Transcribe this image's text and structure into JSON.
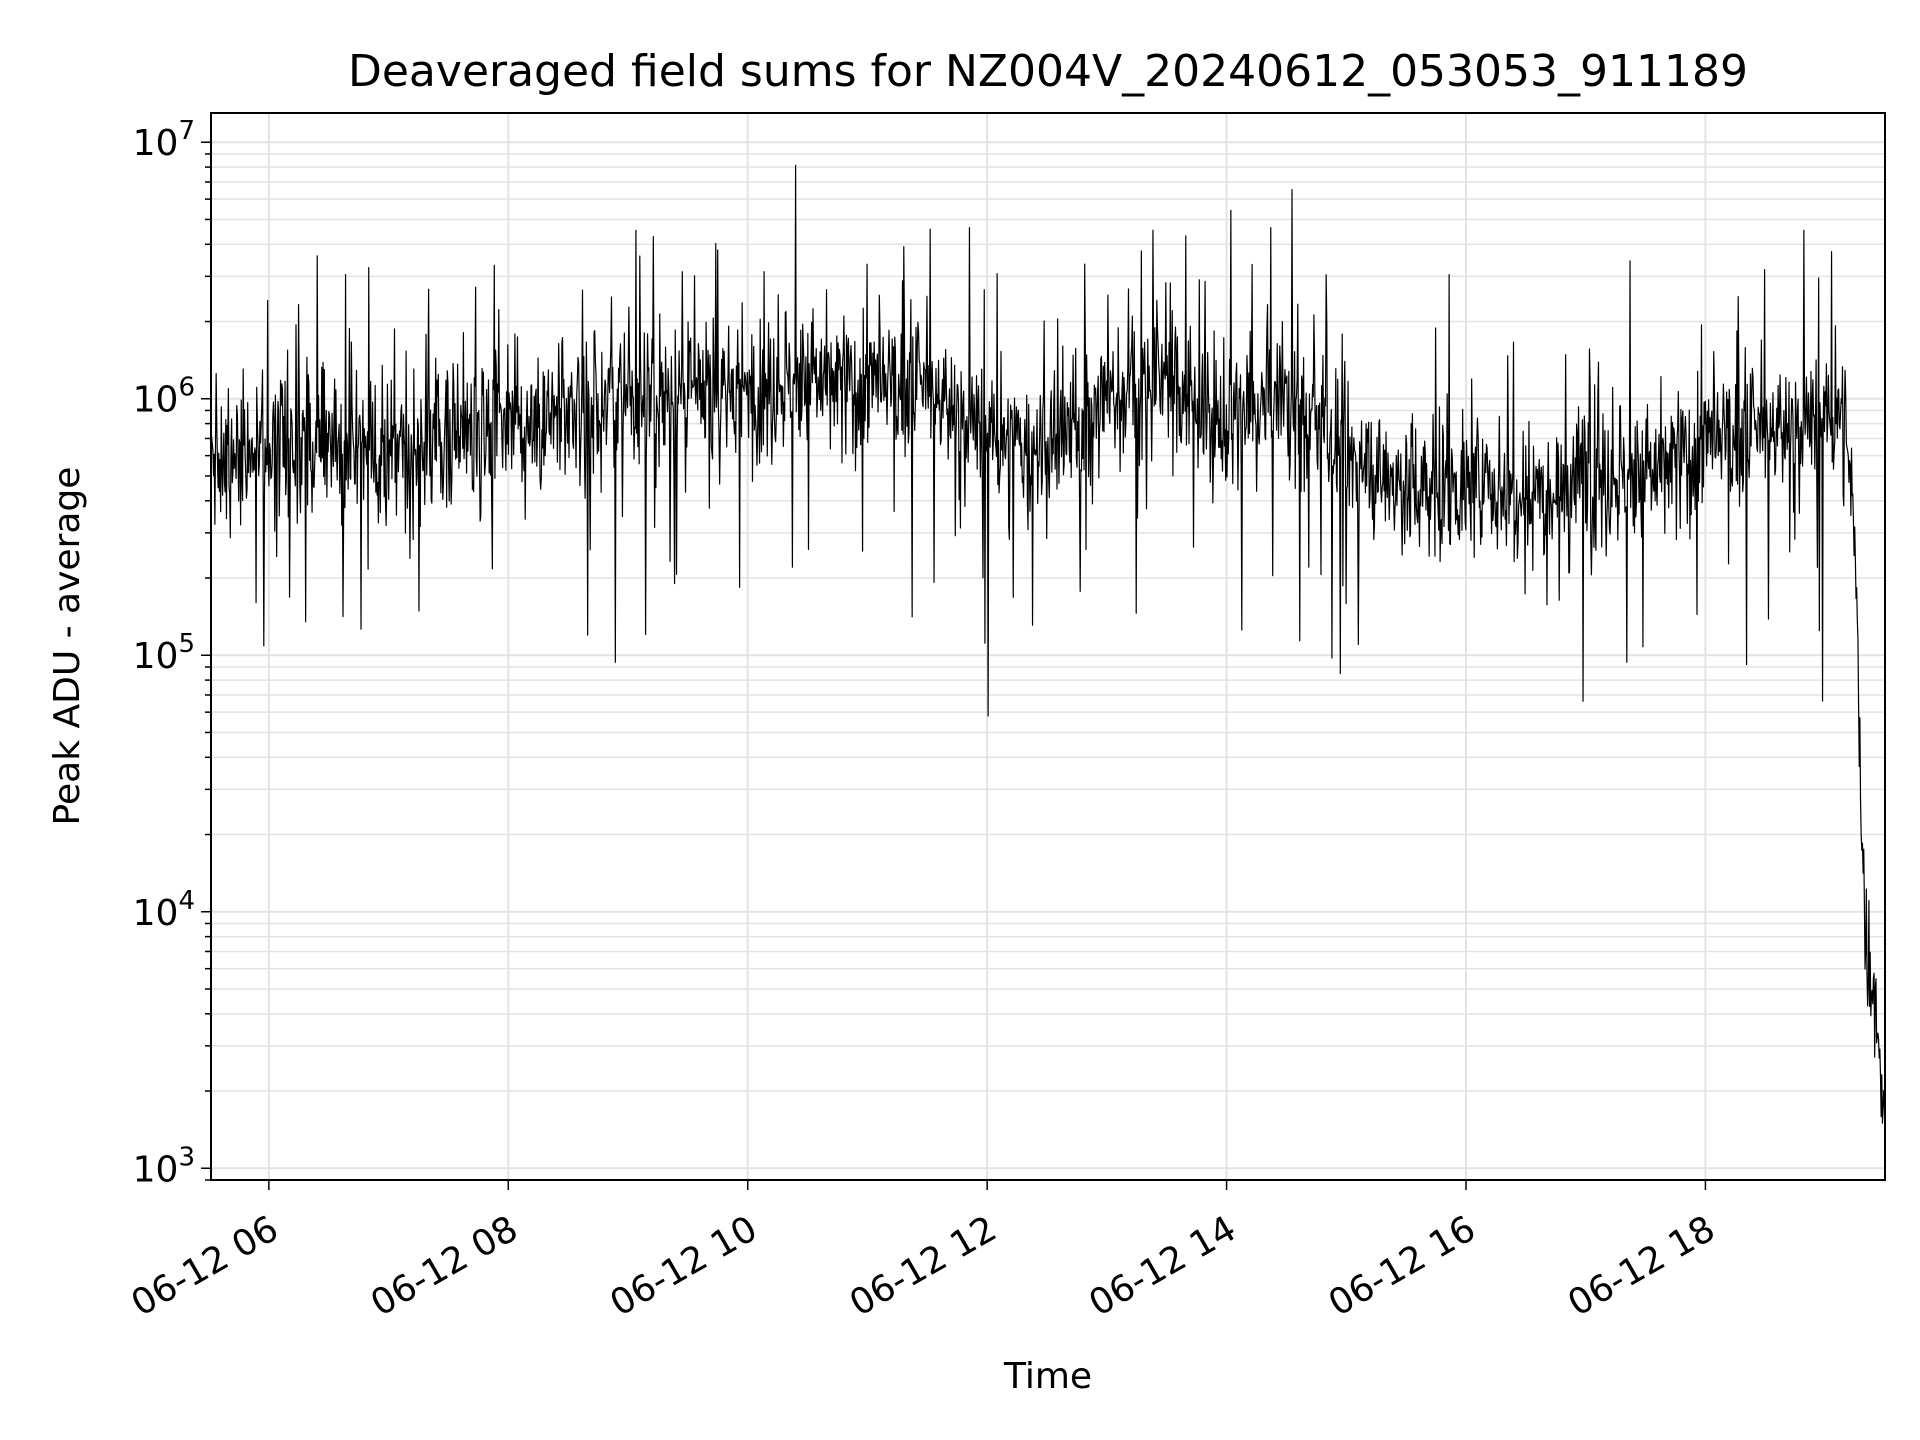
{
  "chart_data": {
    "type": "line",
    "title": "Deaveraged field sums for NZ004V_20240612_053053_911189",
    "xlabel": "Time",
    "ylabel": "Peak ADU - average",
    "yscale": "log",
    "ylim": [
      900,
      13000000
    ],
    "xlim": [
      "2024-06-12 05:31",
      "2024-06-12 19:30"
    ],
    "grid": true,
    "line_color": "#000000",
    "x_ticks": [
      "06-12 06",
      "06-12 08",
      "06-12 10",
      "06-12 12",
      "06-12 14",
      "06-12 16",
      "06-12 18"
    ],
    "x_tick_times": [
      "2024-06-12 06:00",
      "2024-06-12 08:00",
      "2024-06-12 10:00",
      "2024-06-12 12:00",
      "2024-06-12 14:00",
      "2024-06-12 16:00",
      "2024-06-12 18:00"
    ],
    "y_ticks": [
      {
        "base": "10",
        "exp": "3",
        "value": 1000
      },
      {
        "base": "10",
        "exp": "4",
        "value": 10000
      },
      {
        "base": "10",
        "exp": "5",
        "value": 100000
      },
      {
        "base": "10",
        "exp": "6",
        "value": 1000000
      },
      {
        "base": "10",
        "exp": "7",
        "value": 10000000
      }
    ],
    "series": [
      {
        "x": [
          "2024-06-12 05:31",
          "2024-06-12 06:00",
          "2024-06-12 06:30",
          "2024-06-12 07:00",
          "2024-06-12 07:30",
          "2024-06-12 08:00",
          "2024-06-12 08:30",
          "2024-06-12 09:00",
          "2024-06-12 09:30",
          "2024-06-12 10:00",
          "2024-06-12 10:30",
          "2024-06-12 11:00",
          "2024-06-12 11:30",
          "2024-06-12 12:00",
          "2024-06-12 12:30",
          "2024-06-12 13:00",
          "2024-06-12 13:30",
          "2024-06-12 14:00",
          "2024-06-12 14:30",
          "2024-06-12 15:00",
          "2024-06-12 15:30",
          "2024-06-12 16:00",
          "2024-06-12 16:30",
          "2024-06-12 17:00",
          "2024-06-12 17:30",
          "2024-06-12 18:00",
          "2024-06-12 18:30",
          "2024-06-12 19:00",
          "2024-06-12 19:10",
          "2024-06-12 19:15",
          "2024-06-12 19:20",
          "2024-06-12 19:25",
          "2024-06-12 19:30"
        ],
        "y": [
          600000,
          650000,
          700000,
          600000,
          700000,
          900000,
          850000,
          1000000,
          1000000,
          1100000,
          1200000,
          1100000,
          1100000,
          700000,
          600000,
          1000000,
          1200000,
          800000,
          1000000,
          600000,
          450000,
          450000,
          450000,
          500000,
          500000,
          650000,
          750000,
          800000,
          900000,
          250000,
          8000,
          5000,
          1500
        ]
      }
    ]
  }
}
